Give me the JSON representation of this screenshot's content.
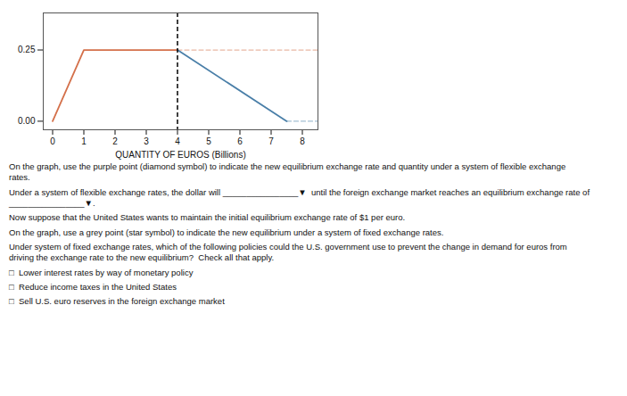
{
  "chart_data": {
    "type": "line",
    "xlabel": "QUANTITY OF EUROS (Billions)",
    "xlim": [
      -0.3,
      8.5
    ],
    "ylim": [
      -0.03,
      0.38
    ],
    "xticks": [
      0,
      1,
      2,
      3,
      4,
      5,
      6,
      7,
      8
    ],
    "yticks": [
      {
        "value": 0,
        "label": "0.00"
      },
      {
        "value": 0.25,
        "label": "0.25"
      }
    ],
    "grid": false,
    "series": [
      {
        "x": [
          0,
          1,
          4
        ],
        "values": [
          0.0,
          0.25,
          0.25
        ],
        "color": "#d4704a",
        "line_style": "solid"
      },
      {
        "x": [
          4,
          8.5
        ],
        "values": [
          0.25,
          0.25
        ],
        "color": "#d4704a",
        "line_style": "dashed"
      },
      {
        "x": [
          4,
          7.5
        ],
        "values": [
          0.25,
          0.0
        ],
        "color": "#4a7fa8",
        "line_style": "solid"
      },
      {
        "x": [
          7.5,
          8.5
        ],
        "values": [
          0.0,
          0.0
        ],
        "color": "#4a7fa8",
        "line_style": "dashed"
      },
      {
        "type": "rule",
        "x": [
          4
        ],
        "color": "black",
        "line_style": "dashed"
      }
    ],
    "annotations": [
      "On the graph, use the purple point (diamond symbol) to indicate the new equilibrium exchange rate and quantity under a system of flexible exchange\nrates.",
      "Under a system of flexible exchange rates, the dollar will ________________▼  until the foreign exchange market reaches an equilibrium exchange rate of\n________________▼.",
      "Now suppose that the United States wants to maintain the initial equilibrium exchange rate of $1 per euro.",
      "On the graph, use a grey point (star symbol) to indicate the new equilibrium under a system of fixed exchange rates.",
      "Under system of fixed exchange rates, which of the following policies could the U.S. government use to prevent the change in demand for euros from\ndriving the exchange rate to the new equilibrium?  Check all that apply.",
      "□  Lower interest rates by way of monetary policy",
      "□  Reduce income taxes in the United States",
      "□  Sell U.S. euro reserves in the foreign exchange market"
    ]
  }
}
